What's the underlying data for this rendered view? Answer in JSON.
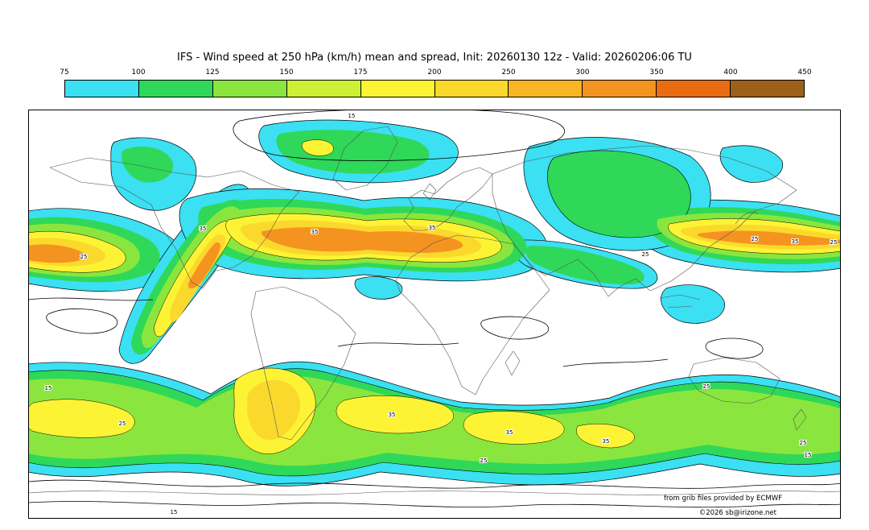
{
  "header": {
    "title": "IFS - Wind speed at 250 hPa (km/h) mean and spread, Init: 20260130 12z - Valid: 20260206:06 TU"
  },
  "colorbar": {
    "tick_labels": [
      "75",
      "100",
      "125",
      "150",
      "175",
      "200",
      "250",
      "300",
      "350",
      "400",
      "450"
    ],
    "segment_colors": [
      "#3be0f2",
      "#2fd858",
      "#8ae63e",
      "#cdef35",
      "#fdf335",
      "#fbd92c",
      "#f8b524",
      "#f59320",
      "#e96c12",
      "#9c6019"
    ]
  },
  "map": {
    "contour_labels": [
      "15",
      "25",
      "35"
    ],
    "attribution_line1": "from grib files provided by ECMWF",
    "attribution_line2": "©2026 sb@irizone.net"
  },
  "chart_data": {
    "type": "heatmap",
    "title": "IFS - Wind speed at 250 hPa (km/h) mean and spread, Init: 20260130 12z - Valid: 20260206:06 TU",
    "field": "250 hPa wind speed ensemble mean (color shading) with ensemble spread contours",
    "model": "IFS",
    "init": "20260130 12z",
    "valid": "20260206:06 TU",
    "unit": "km/h",
    "levels": [
      75,
      100,
      125,
      150,
      175,
      200,
      250,
      300,
      350,
      400,
      450
    ],
    "level_colors": [
      "#3be0f2",
      "#2fd858",
      "#8ae63e",
      "#cdef35",
      "#fdf335",
      "#fbd92c",
      "#f8b524",
      "#f59320",
      "#e96c12",
      "#9c6019"
    ],
    "spread_contour_values": [
      15,
      25,
      35
    ],
    "projection": "equirectangular world map, white land/sea with coastline outlines",
    "features": [
      "Northern-hemisphere jet cores above 300 km/h over the western Atlantic, North Atlantic/Europe and the western Pacific",
      "Diagonal jet streak over eastern North America",
      "Cyan/green 75-150 km/h patches over Arctic and North Pacific regions",
      "Continuous southern-hemisphere jet band near 50S with 175-250 km/h yellow cores"
    ],
    "attribution": [
      "from grib files provided by ECMWF",
      "©2026 sb@irizone.net"
    ]
  }
}
